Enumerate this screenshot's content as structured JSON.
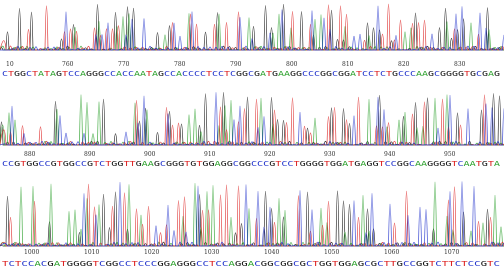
{
  "rows": [
    {
      "positions": [
        "10",
        "760",
        "770",
        "780",
        "790",
        "800",
        "810",
        "820",
        "830"
      ],
      "sequence": "CTGGCTATAGTCCAGGGCCACCAATAGCCACCCCTCCTCGGCGATGAAGGCCCGGCGGATCCTCTGCCCAAGCGGGGTGCGAG"
    },
    {
      "positions": [
        "880",
        "890",
        "900",
        "910",
        "920",
        "930",
        "940",
        "950"
      ],
      "sequence": "CCGTGGCCGTGGCCGTCTGGTTGAAGCGGGTGTGGAGGCGGCCCGTCCTGGGGTGGATGAGGTCCGGCAAGGGGTCAATGTA"
    },
    {
      "positions": [
        "1000",
        "1010",
        "1020",
        "1030",
        "1040",
        "1050",
        "1060",
        "1070"
      ],
      "sequence": "TCTCCACGATGGGGTCGGCCTCCCGGAGGGCCTCCAGGACGGCGGCGCTGGTGGAGCGCTTGCCGGTCTTCTCCGTC"
    }
  ]
}
